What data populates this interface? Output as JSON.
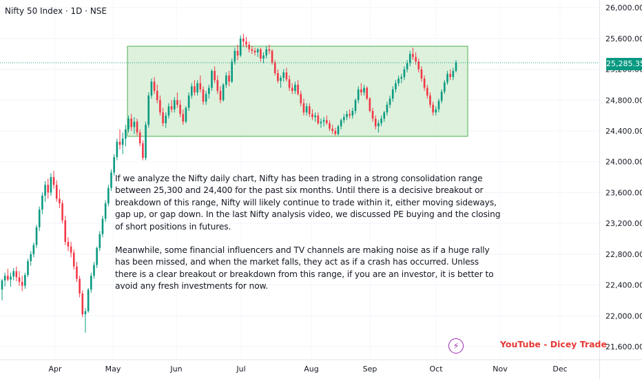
{
  "header": {
    "symbol_title": "Nifty 50 Index · 1D · NSE"
  },
  "annotation": {
    "paragraphs": [
      "If we analyze the Nifty daily chart, Nifty has been trading in a strong consolidation range between 25,300 and 24,400 for the past six months. Until there is a decisive breakout or  breakdown of this range, Nifty will likely continue to trade within it, either moving sideways, gap up, or gap down. In the last Nifty analysis video, we discussed PE buying and the closing of short positions in futures.",
      "Meanwhile, some financial influencers and TV channels are making noise as if a huge rally has been missed, and when the market falls, they act as if a crash has occurred. Unless there is a clear breakout or breakdown from this range, if you are an investor, it is better to avoid any fresh investments for now."
    ]
  },
  "price_badge": "25,285.35",
  "watermark": "YouTube - Dicey Trade",
  "colors": {
    "up": "#089981",
    "down": "#f23645",
    "range_fill": "#d7eed6",
    "range_border": "#4caf50",
    "bolt": "#9c27b0",
    "watermark": "#e53935"
  },
  "icons": {
    "bolt": "lightning-bolt-icon"
  },
  "chart_data": {
    "type": "candlestick",
    "title": "Nifty 50 Index · 1D · NSE",
    "y_ticks": [
      "26,000.00",
      "25,600.00",
      "25,200.00",
      "24,800.00",
      "24,400.00",
      "24,000.00",
      "23,600.00",
      "23,200.00",
      "22,800.00",
      "22,400.00",
      "22,000.00",
      "21,600.00"
    ],
    "y_tick_values": [
      26000,
      25600,
      25200,
      24800,
      24400,
      24000,
      23600,
      23200,
      22800,
      22400,
      22000,
      21600
    ],
    "x_ticks": [
      "Apr",
      "May",
      "Jun",
      "Jul",
      "Aug",
      "Sep",
      "Oct",
      "Nov",
      "Dec"
    ],
    "ylim": [
      21430,
      26100
    ],
    "last_price": 25285.35,
    "range_box": {
      "upper": 25500,
      "lower": 24330,
      "start_label": "May",
      "end_label": "Oct"
    },
    "candles_note": "approximate daily OHLC read from the chart, in index points",
    "candles": [
      [
        22340,
        22480,
        22200,
        22460
      ],
      [
        22460,
        22560,
        22380,
        22520
      ],
      [
        22520,
        22610,
        22450,
        22470
      ],
      [
        22470,
        22560,
        22380,
        22510
      ],
      [
        22510,
        22620,
        22460,
        22580
      ],
      [
        22580,
        22640,
        22450,
        22500
      ],
      [
        22500,
        22580,
        22390,
        22440
      ],
      [
        22440,
        22520,
        22320,
        22390
      ],
      [
        22390,
        22560,
        22350,
        22530
      ],
      [
        22530,
        22740,
        22500,
        22710
      ],
      [
        22710,
        22840,
        22650,
        22800
      ],
      [
        22800,
        22950,
        22760,
        22920
      ],
      [
        22920,
        23180,
        22880,
        23150
      ],
      [
        23150,
        23420,
        23100,
        23380
      ],
      [
        23380,
        23600,
        23320,
        23560
      ],
      [
        23560,
        23750,
        23480,
        23700
      ],
      [
        23700,
        23780,
        23520,
        23600
      ],
      [
        23600,
        23850,
        23560,
        23800
      ],
      [
        23800,
        23880,
        23650,
        23700
      ],
      [
        23700,
        23760,
        23480,
        23520
      ],
      [
        23520,
        23640,
        23400,
        23460
      ],
      [
        23460,
        23500,
        23200,
        23240
      ],
      [
        23240,
        23300,
        22920,
        22960
      ],
      [
        22960,
        23020,
        22840,
        22900
      ],
      [
        22900,
        22960,
        22760,
        22820
      ],
      [
        22820,
        22860,
        22600,
        22640
      ],
      [
        22640,
        22700,
        22440,
        22480
      ],
      [
        22480,
        22520,
        22240,
        22290
      ],
      [
        22290,
        22330,
        21980,
        22020
      ],
      [
        22020,
        22100,
        21780,
        22060
      ],
      [
        22060,
        22360,
        22040,
        22340
      ],
      [
        22340,
        22560,
        22300,
        22520
      ],
      [
        22520,
        22700,
        22480,
        22660
      ],
      [
        22660,
        22900,
        22620,
        22880
      ],
      [
        22880,
        23100,
        22840,
        23060
      ],
      [
        23060,
        23300,
        23020,
        23260
      ],
      [
        23260,
        23500,
        23220,
        23460
      ],
      [
        23460,
        23700,
        23420,
        23660
      ],
      [
        23660,
        23900,
        23620,
        23860
      ],
      [
        23860,
        24100,
        23820,
        24060
      ],
      [
        24060,
        24300,
        24020,
        24260
      ],
      [
        24260,
        24420,
        24160,
        24220
      ],
      [
        24220,
        24380,
        24100,
        24300
      ],
      [
        24300,
        24480,
        24200,
        24420
      ],
      [
        24420,
        24600,
        24380,
        24560
      ],
      [
        24560,
        24620,
        24400,
        24450
      ],
      [
        24450,
        24580,
        24360,
        24520
      ],
      [
        24520,
        24560,
        24340,
        24380
      ],
      [
        24380,
        24420,
        24200,
        24240
      ],
      [
        24240,
        24280,
        24020,
        24050
      ],
      [
        24050,
        24520,
        24020,
        24480
      ],
      [
        24480,
        24900,
        24440,
        24860
      ],
      [
        24860,
        25080,
        24820,
        25040
      ],
      [
        25040,
        25100,
        24880,
        24920
      ],
      [
        24920,
        25000,
        24760,
        24800
      ],
      [
        24800,
        24860,
        24600,
        24640
      ],
      [
        24640,
        24700,
        24460,
        24500
      ],
      [
        24500,
        24640,
        24440,
        24600
      ],
      [
        24600,
        24760,
        24560,
        24720
      ],
      [
        24720,
        24800,
        24640,
        24680
      ],
      [
        24680,
        24840,
        24640,
        24800
      ],
      [
        24800,
        24900,
        24700,
        24740
      ],
      [
        24740,
        24800,
        24580,
        24620
      ],
      [
        24620,
        24680,
        24480,
        24520
      ],
      [
        24520,
        24720,
        24500,
        24700
      ],
      [
        24700,
        24900,
        24660,
        24860
      ],
      [
        24860,
        25020,
        24820,
        24980
      ],
      [
        24980,
        25060,
        24860,
        24900
      ],
      [
        24900,
        25060,
        24860,
        25020
      ],
      [
        25020,
        25120,
        24900,
        24940
      ],
      [
        24940,
        24980,
        24740,
        24780
      ],
      [
        24780,
        24920,
        24740,
        24880
      ],
      [
        24880,
        25000,
        24820,
        24960
      ],
      [
        24960,
        25200,
        24920,
        25180
      ],
      [
        25180,
        25240,
        25020,
        25060
      ],
      [
        25060,
        25120,
        24880,
        24920
      ],
      [
        24920,
        24980,
        24760,
        24800
      ],
      [
        24800,
        25020,
        24780,
        25000
      ],
      [
        25000,
        25160,
        24960,
        25120
      ],
      [
        25120,
        25180,
        24980,
        25040
      ],
      [
        25040,
        25340,
        25020,
        25300
      ],
      [
        25300,
        25480,
        25260,
        25440
      ],
      [
        25440,
        25520,
        25320,
        25380
      ],
      [
        25380,
        25640,
        25360,
        25600
      ],
      [
        25600,
        25660,
        25500,
        25560
      ],
      [
        25560,
        25620,
        25480,
        25520
      ],
      [
        25520,
        25560,
        25420,
        25460
      ],
      [
        25460,
        25500,
        25400,
        25440
      ],
      [
        25440,
        25480,
        25380,
        25420
      ],
      [
        25420,
        25480,
        25360,
        25460
      ],
      [
        25460,
        25480,
        25300,
        25340
      ],
      [
        25340,
        25420,
        25280,
        25380
      ],
      [
        25380,
        25500,
        25340,
        25460
      ],
      [
        25460,
        25520,
        25400,
        25440
      ],
      [
        25440,
        25460,
        25260,
        25290
      ],
      [
        25290,
        25320,
        25120,
        25150
      ],
      [
        25150,
        25200,
        25020,
        25050
      ],
      [
        25050,
        25120,
        24960,
        25090
      ],
      [
        25090,
        25200,
        25040,
        25160
      ],
      [
        25160,
        25220,
        25040,
        25070
      ],
      [
        25070,
        25120,
        24920,
        24960
      ],
      [
        24960,
        25020,
        24880,
        24920
      ],
      [
        24920,
        25040,
        24880,
        25000
      ],
      [
        25000,
        25060,
        24860,
        24880
      ],
      [
        24880,
        24920,
        24720,
        24760
      ],
      [
        24760,
        24820,
        24600,
        24640
      ],
      [
        24640,
        24760,
        24600,
        24720
      ],
      [
        24720,
        24760,
        24580,
        24620
      ],
      [
        24620,
        24680,
        24540,
        24580
      ],
      [
        24580,
        24640,
        24520,
        24600
      ],
      [
        24600,
        24640,
        24480,
        24500
      ],
      [
        24500,
        24560,
        24440,
        24520
      ],
      [
        24520,
        24580,
        24460,
        24540
      ],
      [
        24540,
        24600,
        24480,
        24500
      ],
      [
        24500,
        24540,
        24400,
        24430
      ],
      [
        24430,
        24480,
        24360,
        24400
      ],
      [
        24400,
        24440,
        24340,
        24360
      ],
      [
        24360,
        24480,
        24340,
        24460
      ],
      [
        24460,
        24560,
        24420,
        24540
      ],
      [
        24540,
        24620,
        24500,
        24580
      ],
      [
        24580,
        24660,
        24540,
        24620
      ],
      [
        24620,
        24680,
        24560,
        24600
      ],
      [
        24600,
        24700,
        24560,
        24660
      ],
      [
        24660,
        24820,
        24620,
        24800
      ],
      [
        24800,
        24980,
        24760,
        24940
      ],
      [
        24940,
        25020,
        24860,
        24900
      ],
      [
        24900,
        25000,
        24860,
        24960
      ],
      [
        24960,
        24980,
        24800,
        24820
      ],
      [
        24820,
        24840,
        24640,
        24660
      ],
      [
        24660,
        24700,
        24520,
        24560
      ],
      [
        24560,
        24600,
        24420,
        24460
      ],
      [
        24460,
        24540,
        24380,
        24500
      ],
      [
        24500,
        24600,
        24460,
        24560
      ],
      [
        24560,
        24660,
        24520,
        24640
      ],
      [
        24640,
        24780,
        24600,
        24740
      ],
      [
        24740,
        24860,
        24700,
        24820
      ],
      [
        24820,
        24980,
        24780,
        24940
      ],
      [
        24940,
        25060,
        24900,
        25020
      ],
      [
        25020,
        25120,
        24980,
        25080
      ],
      [
        25080,
        25140,
        25020,
        25100
      ],
      [
        25100,
        25240,
        25060,
        25200
      ],
      [
        25200,
        25320,
        25160,
        25280
      ],
      [
        25280,
        25440,
        25240,
        25400
      ],
      [
        25400,
        25480,
        25320,
        25360
      ],
      [
        25360,
        25420,
        25260,
        25300
      ],
      [
        25300,
        25340,
        25160,
        25200
      ],
      [
        25200,
        25240,
        25040,
        25080
      ],
      [
        25080,
        25120,
        24920,
        24960
      ],
      [
        24960,
        25000,
        24820,
        24860
      ],
      [
        24860,
        24900,
        24700,
        24740
      ],
      [
        24740,
        24780,
        24600,
        24640
      ],
      [
        24640,
        24720,
        24600,
        24680
      ],
      [
        24680,
        24820,
        24640,
        24790
      ],
      [
        24790,
        24940,
        24760,
        24910
      ],
      [
        24910,
        25060,
        24880,
        25030
      ],
      [
        25030,
        25180,
        25000,
        25140
      ],
      [
        25140,
        25200,
        25060,
        25100
      ],
      [
        25100,
        25220,
        25060,
        25180
      ],
      [
        25180,
        25320,
        25160,
        25285
      ]
    ]
  }
}
